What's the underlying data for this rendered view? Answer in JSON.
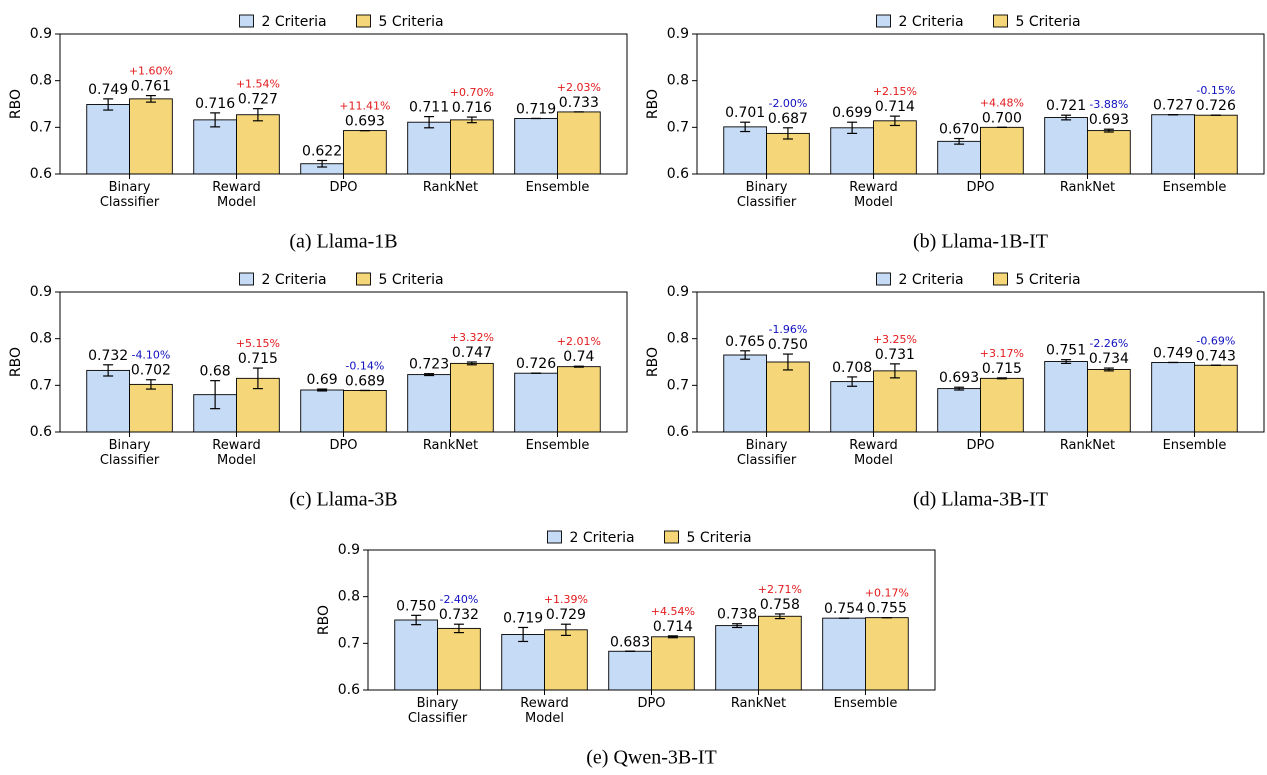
{
  "chart_data": [
    {
      "type": "bar",
      "title": "(a) Llama-1B",
      "ylabel": "RBO",
      "categories": [
        "Binary Classifier",
        "Reward Model",
        "DPO",
        "RankNet",
        "Ensemble"
      ],
      "series": [
        {
          "name": "2 Criteria",
          "color": "#c6dbf5",
          "values": [
            0.749,
            0.716,
            0.622,
            0.711,
            0.719
          ],
          "errors": [
            0.012,
            0.015,
            0.007,
            0.012,
            0
          ]
        },
        {
          "name": "5 Criteria",
          "color": "#f5d77a",
          "values": [
            0.761,
            0.727,
            0.693,
            0.716,
            0.733
          ],
          "errors": [
            0.007,
            0.013,
            0,
            0.006,
            0
          ]
        }
      ],
      "annotations": [
        "+1.60%",
        "+1.54%",
        "+11.41%",
        "+0.70%",
        "+2.03%"
      ],
      "increase_color": "#e31a1c",
      "decrease_color": "#1010c0",
      "ylim": [
        0.6,
        0.9
      ],
      "yticks": [
        0.6,
        0.7,
        0.8,
        0.9
      ]
    },
    {
      "type": "bar",
      "title": "(b) Llama-1B-IT",
      "ylabel": "RBO",
      "categories": [
        "Binary Classifier",
        "Reward Model",
        "DPO",
        "RankNet",
        "Ensemble"
      ],
      "series": [
        {
          "name": "2 Criteria",
          "color": "#c6dbf5",
          "values": [
            0.701,
            0.699,
            0.67,
            0.721,
            0.727
          ],
          "errors": [
            0.01,
            0.012,
            0.006,
            0.005,
            0
          ]
        },
        {
          "name": "5 Criteria",
          "color": "#f5d77a",
          "values": [
            0.687,
            0.714,
            0.7,
            0.693,
            0.726
          ],
          "errors": [
            0.012,
            0.01,
            0,
            0.003,
            0
          ]
        }
      ],
      "value_labels": {
        "2 Criteria": [
          "0.701",
          "0.699",
          "0.670",
          "0.721",
          "0.727"
        ],
        "5 Criteria": [
          "0.687",
          "0.714",
          "0.700",
          "0.693",
          "0.726"
        ]
      },
      "annotations": [
        "-2.00%",
        "+2.15%",
        "+4.48%",
        "-3.88%",
        "-0.15%"
      ],
      "increase_color": "#e31a1c",
      "decrease_color": "#1010c0",
      "ylim": [
        0.6,
        0.9
      ],
      "yticks": [
        0.6,
        0.7,
        0.8,
        0.9
      ]
    },
    {
      "type": "bar",
      "title": "(c) Llama-3B",
      "ylabel": "RBO",
      "categories": [
        "Binary Classifier",
        "Reward Model",
        "DPO",
        "RankNet",
        "Ensemble"
      ],
      "series": [
        {
          "name": "2 Criteria",
          "color": "#c6dbf5",
          "values": [
            0.732,
            0.68,
            0.69,
            0.723,
            0.726
          ],
          "errors": [
            0.012,
            0.03,
            0.002,
            0.002,
            0
          ]
        },
        {
          "name": "5 Criteria",
          "color": "#f5d77a",
          "values": [
            0.702,
            0.715,
            0.689,
            0.747,
            0.74
          ],
          "errors": [
            0.01,
            0.022,
            0,
            0.003,
            0.001
          ]
        }
      ],
      "annotations": [
        "-4.10%",
        "+5.15%",
        "-0.14%",
        "+3.32%",
        "+2.01%"
      ],
      "increase_color": "#e31a1c",
      "decrease_color": "#1010c0",
      "ylim": [
        0.6,
        0.9
      ],
      "yticks": [
        0.6,
        0.7,
        0.8,
        0.9
      ]
    },
    {
      "type": "bar",
      "title": "(d) Llama-3B-IT",
      "ylabel": "RBO",
      "categories": [
        "Binary Classifier",
        "Reward Model",
        "DPO",
        "RankNet",
        "Ensemble"
      ],
      "series": [
        {
          "name": "2 Criteria",
          "color": "#c6dbf5",
          "values": [
            0.765,
            0.708,
            0.693,
            0.751,
            0.749
          ],
          "errors": [
            0.009,
            0.01,
            0.003,
            0.004,
            0
          ]
        },
        {
          "name": "5 Criteria",
          "color": "#f5d77a",
          "values": [
            0.75,
            0.731,
            0.715,
            0.734,
            0.743
          ],
          "errors": [
            0.017,
            0.015,
            0.001,
            0.003,
            0
          ]
        }
      ],
      "value_labels": {
        "2 Criteria": [
          "0.765",
          "0.708",
          "0.693",
          "0.751",
          "0.749"
        ],
        "5 Criteria": [
          "0.750",
          "0.731",
          "0.715",
          "0.734",
          "0.743"
        ]
      },
      "annotations": [
        "-1.96%",
        "+3.25%",
        "+3.17%",
        "-2.26%",
        "-0.69%"
      ],
      "increase_color": "#e31a1c",
      "decrease_color": "#1010c0",
      "ylim": [
        0.6,
        0.9
      ],
      "yticks": [
        0.6,
        0.7,
        0.8,
        0.9
      ]
    },
    {
      "type": "bar",
      "title": "(e) Qwen-3B-IT",
      "ylabel": "RBO",
      "categories": [
        "Binary Classifier",
        "Reward Model",
        "DPO",
        "RankNet",
        "Ensemble"
      ],
      "series": [
        {
          "name": "2 Criteria",
          "color": "#c6dbf5",
          "values": [
            0.75,
            0.719,
            0.683,
            0.738,
            0.754
          ],
          "errors": [
            0.01,
            0.015,
            0,
            0.004,
            0
          ]
        },
        {
          "name": "5 Criteria",
          "color": "#f5d77a",
          "values": [
            0.732,
            0.729,
            0.714,
            0.758,
            0.755
          ],
          "errors": [
            0.009,
            0.012,
            0.002,
            0.005,
            0
          ]
        }
      ],
      "value_labels": {
        "2 Criteria": [
          "0.750",
          "0.719",
          "0.683",
          "0.738",
          "0.754"
        ],
        "5 Criteria": [
          "0.732",
          "0.729",
          "0.714",
          "0.758",
          "0.755"
        ]
      },
      "annotations": [
        "-2.40%",
        "+1.39%",
        "+4.54%",
        "+2.71%",
        "+0.17%"
      ],
      "increase_color": "#e31a1c",
      "decrease_color": "#1010c0",
      "ylim": [
        0.6,
        0.9
      ],
      "yticks": [
        0.6,
        0.7,
        0.8,
        0.9
      ]
    }
  ]
}
